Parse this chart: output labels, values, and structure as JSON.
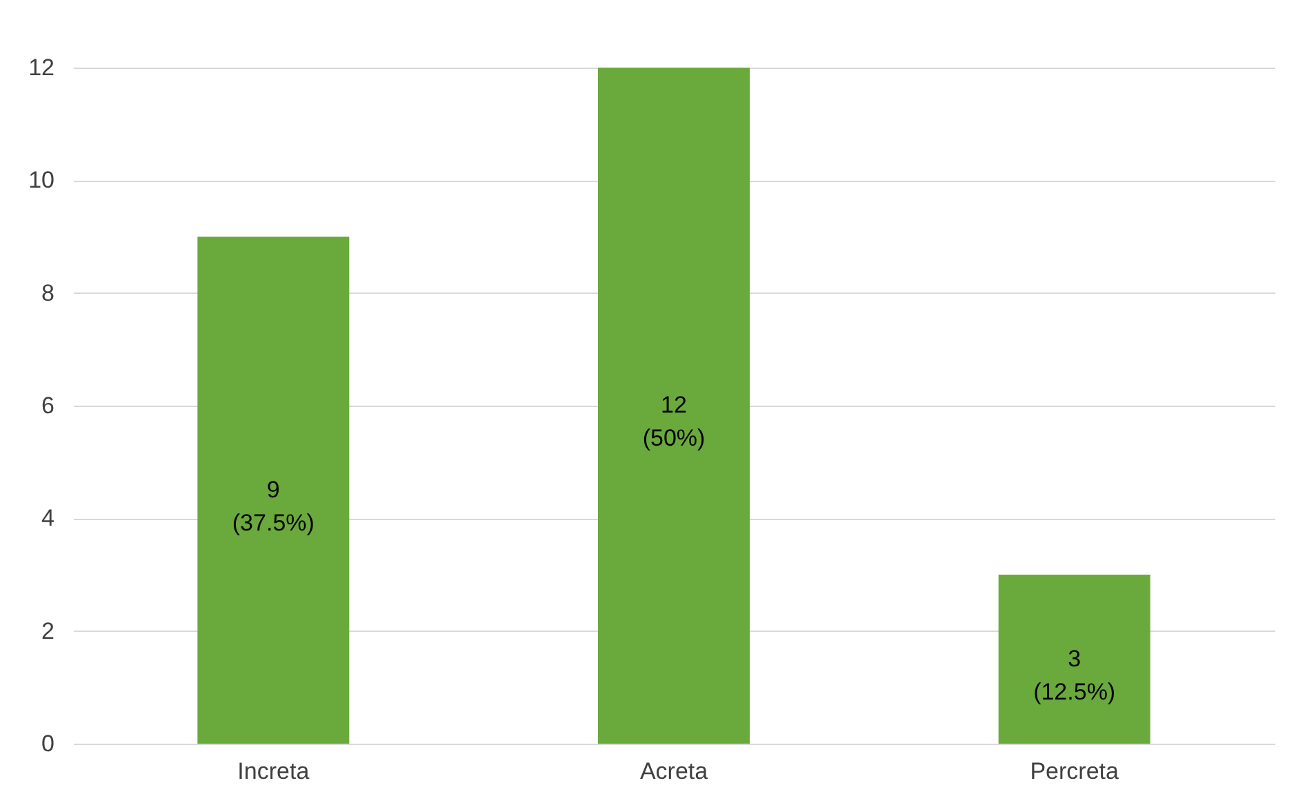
{
  "chart_data": {
    "type": "bar",
    "categories": [
      "Increta",
      "Acreta",
      "Percreta"
    ],
    "values": [
      9,
      12,
      3
    ],
    "value_labels": [
      "9\n(37.5%)",
      "12\n(50%)",
      "3\n(12.5%)"
    ],
    "color": "#6aaa3c",
    "ylim": [
      0,
      12
    ],
    "yticks": [
      0,
      2,
      4,
      6,
      8,
      10,
      12
    ],
    "grid": "y"
  }
}
